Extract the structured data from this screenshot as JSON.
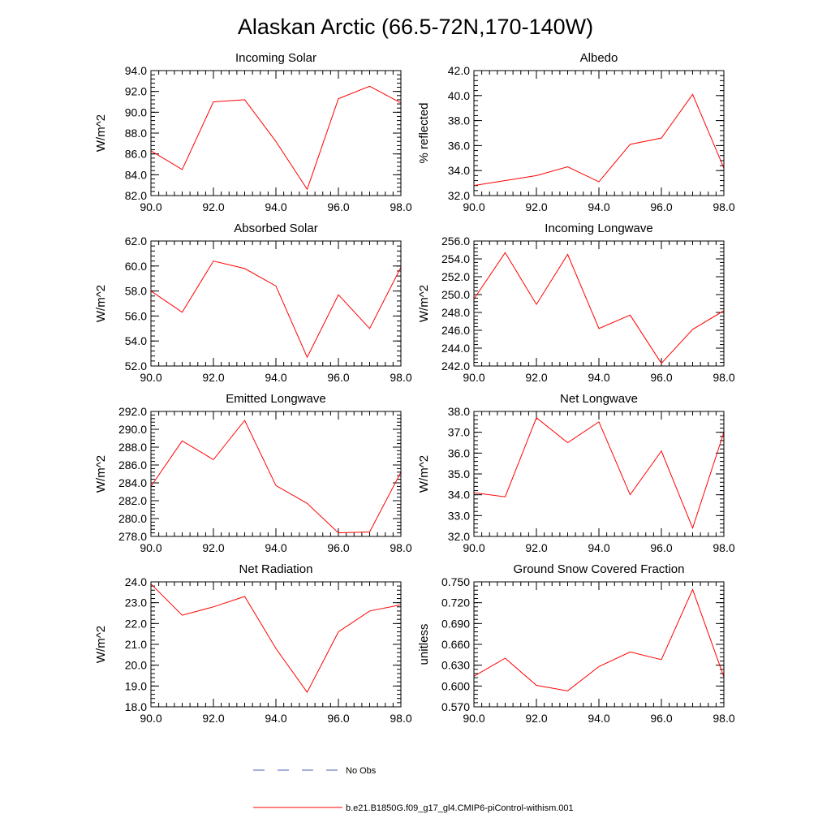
{
  "figure_title": "Alaskan Arctic (66.5-72N,170-140W)",
  "legend": [
    {
      "label": "No Obs",
      "color": "#4b5fb0",
      "style": "dashed"
    },
    {
      "label": "b.e21.B1850G.f09_g17_gl4.CMIP6-piControl-withism.001",
      "color": "#ff0000",
      "style": "solid"
    }
  ],
  "chart_data": [
    {
      "type": "line",
      "title": "Incoming Solar",
      "xlabel": "",
      "ylabel": "W/m^2",
      "xlim": [
        90,
        98
      ],
      "ylim": [
        82,
        94
      ],
      "x_ticks": [
        90,
        92,
        94,
        96,
        98
      ],
      "y_ticks": [
        82,
        84,
        86,
        88,
        90,
        92,
        94
      ],
      "y_minor_step": 0.4,
      "x_minor_step": 0.25,
      "decimals": 1,
      "series": [
        {
          "color": "#ff0000",
          "x": [
            90,
            91,
            92,
            93,
            94,
            95,
            96,
            97,
            98
          ],
          "values": [
            86.3,
            84.5,
            91.0,
            91.2,
            87.2,
            82.6,
            91.3,
            92.5,
            90.9
          ]
        }
      ]
    },
    {
      "type": "line",
      "title": "Albedo",
      "xlabel": "",
      "ylabel": "% reflected",
      "xlim": [
        90,
        98
      ],
      "ylim": [
        32,
        42
      ],
      "x_ticks": [
        90,
        92,
        94,
        96,
        98
      ],
      "y_ticks": [
        32,
        34,
        36,
        38,
        40,
        42
      ],
      "y_minor_step": 0.4,
      "x_minor_step": 0.25,
      "decimals": 1,
      "series": [
        {
          "color": "#ff0000",
          "x": [
            90,
            91,
            92,
            93,
            94,
            95,
            96,
            97,
            98
          ],
          "values": [
            32.8,
            33.2,
            33.6,
            34.3,
            33.1,
            36.1,
            36.6,
            40.1,
            34.2
          ]
        }
      ]
    },
    {
      "type": "line",
      "title": "Absorbed Solar",
      "xlabel": "",
      "ylabel": "W/m^2",
      "xlim": [
        90,
        98
      ],
      "ylim": [
        52,
        62
      ],
      "x_ticks": [
        90,
        92,
        94,
        96,
        98
      ],
      "y_ticks": [
        52,
        54,
        56,
        58,
        60,
        62
      ],
      "y_minor_step": 0.4,
      "x_minor_step": 0.25,
      "decimals": 1,
      "series": [
        {
          "color": "#ff0000",
          "x": [
            90,
            91,
            92,
            93,
            94,
            95,
            96,
            97,
            98
          ],
          "values": [
            58.0,
            56.3,
            60.4,
            59.8,
            58.4,
            52.7,
            57.7,
            55.0,
            59.9
          ]
        }
      ]
    },
    {
      "type": "line",
      "title": "Incoming Longwave",
      "xlabel": "",
      "ylabel": "W/m^2",
      "xlim": [
        90,
        98
      ],
      "ylim": [
        242,
        256
      ],
      "x_ticks": [
        90,
        92,
        94,
        96,
        98
      ],
      "y_ticks": [
        242,
        244,
        246,
        248,
        250,
        252,
        254,
        256
      ],
      "y_minor_step": 0.4,
      "x_minor_step": 0.25,
      "decimals": 1,
      "series": [
        {
          "color": "#ff0000",
          "x": [
            90,
            91,
            92,
            93,
            94,
            95,
            96,
            97,
            98
          ],
          "values": [
            249.5,
            254.7,
            248.9,
            254.5,
            246.2,
            247.7,
            242.3,
            246.1,
            248.2
          ]
        }
      ]
    },
    {
      "type": "line",
      "title": "Emitted Longwave",
      "xlabel": "",
      "ylabel": "W/m^2",
      "xlim": [
        90,
        98
      ],
      "ylim": [
        278,
        292
      ],
      "x_ticks": [
        90,
        92,
        94,
        96,
        98
      ],
      "y_ticks": [
        278,
        280,
        282,
        284,
        286,
        288,
        290,
        292
      ],
      "y_minor_step": 0.4,
      "x_minor_step": 0.25,
      "decimals": 1,
      "series": [
        {
          "color": "#ff0000",
          "x": [
            90,
            91,
            92,
            93,
            94,
            95,
            96,
            97,
            98
          ],
          "values": [
            283.6,
            288.7,
            286.6,
            291.0,
            283.7,
            281.7,
            278.4,
            278.5,
            285.2
          ]
        }
      ]
    },
    {
      "type": "line",
      "title": "Net Longwave",
      "xlabel": "",
      "ylabel": "W/m^2",
      "xlim": [
        90,
        98
      ],
      "ylim": [
        32,
        38
      ],
      "x_ticks": [
        90,
        92,
        94,
        96,
        98
      ],
      "y_ticks": [
        32,
        33,
        34,
        35,
        36,
        37,
        38
      ],
      "y_minor_step": 0.2,
      "x_minor_step": 0.25,
      "decimals": 1,
      "series": [
        {
          "color": "#ff0000",
          "x": [
            90,
            91,
            92,
            93,
            94,
            95,
            96,
            97,
            98
          ],
          "values": [
            34.1,
            33.9,
            37.7,
            36.5,
            37.5,
            34.0,
            36.1,
            32.4,
            37.0
          ]
        }
      ]
    },
    {
      "type": "line",
      "title": "Net Radiation",
      "xlabel": "",
      "ylabel": "W/m^2",
      "xlim": [
        90,
        98
      ],
      "ylim": [
        18,
        24
      ],
      "x_ticks": [
        90,
        92,
        94,
        96,
        98
      ],
      "y_ticks": [
        18,
        19,
        20,
        21,
        22,
        23,
        24
      ],
      "y_minor_step": 0.2,
      "x_minor_step": 0.25,
      "decimals": 1,
      "series": [
        {
          "color": "#ff0000",
          "x": [
            90,
            91,
            92,
            93,
            94,
            95,
            96,
            97,
            98
          ],
          "values": [
            23.9,
            22.4,
            22.8,
            23.3,
            20.8,
            18.7,
            21.6,
            22.6,
            22.9
          ]
        }
      ]
    },
    {
      "type": "line",
      "title": "Ground Snow Covered Fraction",
      "xlabel": "",
      "ylabel": "unitless",
      "xlim": [
        90,
        98
      ],
      "ylim": [
        0.57,
        0.75
      ],
      "x_ticks": [
        90,
        92,
        94,
        96,
        98
      ],
      "y_ticks": [
        0.57,
        0.6,
        0.63,
        0.66,
        0.69,
        0.72,
        0.75
      ],
      "y_minor_step": 0.006,
      "x_minor_step": 0.25,
      "decimals": 3,
      "series": [
        {
          "color": "#ff0000",
          "x": [
            90,
            91,
            92,
            93,
            94,
            95,
            96,
            97,
            98
          ],
          "values": [
            0.614,
            0.64,
            0.601,
            0.593,
            0.628,
            0.649,
            0.638,
            0.739,
            0.613
          ]
        }
      ]
    }
  ]
}
